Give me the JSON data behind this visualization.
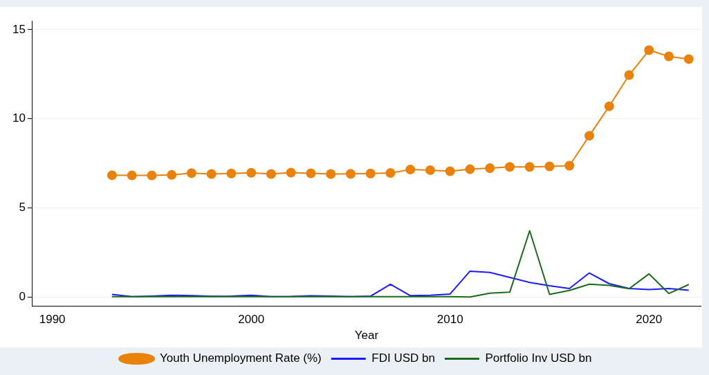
{
  "chart_data": {
    "type": "line",
    "xlabel": "Year",
    "x": [
      1993,
      1994,
      1995,
      1996,
      1997,
      1998,
      1999,
      2000,
      2001,
      2002,
      2003,
      2004,
      2005,
      2006,
      2007,
      2008,
      2009,
      2010,
      2011,
      2012,
      2013,
      2014,
      2015,
      2016,
      2017,
      2018,
      2019,
      2020,
      2021,
      2022
    ],
    "series": [
      {
        "name": "Youth Unemployment Rate (%)",
        "color": "#e8820c",
        "marker": "circle",
        "values": [
          6.83,
          6.82,
          6.82,
          6.85,
          6.95,
          6.9,
          6.93,
          6.97,
          6.9,
          6.98,
          6.94,
          6.9,
          6.91,
          6.93,
          6.96,
          7.15,
          7.12,
          7.06,
          7.17,
          7.23,
          7.3,
          7.3,
          7.33,
          7.37,
          9.05,
          10.7,
          12.45,
          13.85,
          13.5,
          13.35
        ]
      },
      {
        "name": "FDI USD bn",
        "color": "#1a1aff",
        "marker": "none",
        "values": [
          0.15,
          0.02,
          0.05,
          0.1,
          0.08,
          0.04,
          0.05,
          0.1,
          0.02,
          0.03,
          0.07,
          0.05,
          0.02,
          0.05,
          0.72,
          0.08,
          0.1,
          0.17,
          1.45,
          1.38,
          1.1,
          0.82,
          0.63,
          0.48,
          1.35,
          0.75,
          0.48,
          0.42,
          0.48,
          0.38
        ]
      },
      {
        "name": "Portfolio Inv USD bn",
        "color": "#1a6b1a",
        "marker": "none",
        "values": [
          0.02,
          0.02,
          0.02,
          0.02,
          0.02,
          0.02,
          0.02,
          0.02,
          0.02,
          0.02,
          0.02,
          0.02,
          0.02,
          0.02,
          0.02,
          0.02,
          0.02,
          0.02,
          0.0,
          0.22,
          0.27,
          3.72,
          0.15,
          0.37,
          0.72,
          0.65,
          0.47,
          1.3,
          0.2,
          0.7
        ]
      }
    ],
    "xlim": [
      1989,
      2022.6
    ],
    "xticks": [
      1990,
      2000,
      2010,
      2020
    ],
    "ylim": [
      -0.5,
      15.5
    ],
    "yticks": [
      0,
      5,
      10,
      15
    ],
    "grid": "y",
    "legend": "bottom",
    "line_style": "solid"
  }
}
